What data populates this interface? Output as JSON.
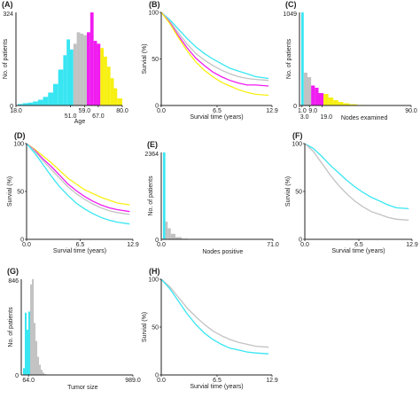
{
  "colors": {
    "cyan": "#38e6f2",
    "gray": "#c2c2c2",
    "magenta": "#f01cf0",
    "yellow": "#f7f012",
    "axis": "#222222"
  },
  "chart_data": [
    {
      "panel": "(A)",
      "type": "histogram",
      "xlabel": "Age",
      "ylabel": "No. of patients",
      "ymax_label": "324",
      "yzero_label": "0",
      "xlim": [
        18,
        80
      ],
      "ylim": [
        0,
        324
      ],
      "xticks": [
        "18.0",
        "51.0",
        "59.0",
        "67.0",
        "80.0"
      ],
      "bins": [
        {
          "x0": 18,
          "x1": 21,
          "count": 5,
          "group": "cyan"
        },
        {
          "x0": 21,
          "x1": 24,
          "count": 8,
          "group": "cyan"
        },
        {
          "x0": 24,
          "x1": 27,
          "count": 10,
          "group": "cyan"
        },
        {
          "x0": 27,
          "x1": 30,
          "count": 14,
          "group": "cyan"
        },
        {
          "x0": 30,
          "x1": 33,
          "count": 20,
          "group": "cyan"
        },
        {
          "x0": 33,
          "x1": 36,
          "count": 30,
          "group": "cyan"
        },
        {
          "x0": 36,
          "x1": 39,
          "count": 45,
          "group": "cyan"
        },
        {
          "x0": 39,
          "x1": 42,
          "count": 75,
          "group": "cyan"
        },
        {
          "x0": 42,
          "x1": 45,
          "count": 125,
          "group": "cyan"
        },
        {
          "x0": 45,
          "x1": 47,
          "count": 175,
          "group": "cyan"
        },
        {
          "x0": 47,
          "x1": 49,
          "count": 230,
          "group": "cyan"
        },
        {
          "x0": 49,
          "x1": 51,
          "count": 195,
          "group": "cyan"
        },
        {
          "x0": 51,
          "x1": 53,
          "count": 215,
          "group": "gray"
        },
        {
          "x0": 53,
          "x1": 55,
          "count": 255,
          "group": "gray"
        },
        {
          "x0": 55,
          "x1": 57,
          "count": 250,
          "group": "gray"
        },
        {
          "x0": 57,
          "x1": 59,
          "count": 245,
          "group": "gray"
        },
        {
          "x0": 59,
          "x1": 61,
          "count": 255,
          "group": "magenta"
        },
        {
          "x0": 61,
          "x1": 63,
          "count": 324,
          "group": "magenta"
        },
        {
          "x0": 63,
          "x1": 65,
          "count": 225,
          "group": "magenta"
        },
        {
          "x0": 65,
          "x1": 67,
          "count": 215,
          "group": "magenta"
        },
        {
          "x0": 67,
          "x1": 69,
          "count": 200,
          "group": "yellow"
        },
        {
          "x0": 69,
          "x1": 71,
          "count": 170,
          "group": "yellow"
        },
        {
          "x0": 71,
          "x1": 73,
          "count": 135,
          "group": "yellow"
        },
        {
          "x0": 73,
          "x1": 75,
          "count": 95,
          "group": "yellow"
        },
        {
          "x0": 75,
          "x1": 77,
          "count": 60,
          "group": "yellow"
        },
        {
          "x0": 77,
          "x1": 80,
          "count": 25,
          "group": "yellow"
        }
      ]
    },
    {
      "panel": "(B)",
      "type": "line",
      "xlabel": "Survial time (years)",
      "ylabel": "Survial (%)",
      "xlim": [
        0,
        12.9
      ],
      "ylim": [
        0,
        100
      ],
      "xticks": [
        "0.0",
        "6.5",
        "12.9"
      ],
      "yticks": [
        "0",
        "50",
        "100"
      ],
      "series": [
        {
          "color": "cyan",
          "x": [
            0,
            1,
            2,
            3,
            4,
            5,
            6,
            7,
            8,
            9,
            10,
            11,
            12.5
          ],
          "y": [
            100,
            92,
            82,
            72,
            63,
            56,
            50,
            45,
            40,
            37,
            34,
            31,
            29
          ]
        },
        {
          "color": "gray",
          "x": [
            0,
            1,
            2,
            3,
            4,
            5,
            6,
            7,
            8,
            9,
            10,
            11,
            12.5
          ],
          "y": [
            100,
            90,
            78,
            66,
            56,
            49,
            43,
            38,
            34,
            31,
            29,
            28,
            27
          ]
        },
        {
          "color": "magenta",
          "x": [
            0,
            1,
            2,
            3,
            4,
            5,
            6,
            7,
            8,
            9,
            10,
            11,
            12.5
          ],
          "y": [
            100,
            89,
            75,
            62,
            51,
            43,
            36,
            31,
            27,
            24,
            22,
            22,
            21
          ]
        },
        {
          "color": "yellow",
          "x": [
            0,
            1,
            2,
            3,
            4,
            5,
            6,
            7,
            8,
            9,
            10,
            11,
            12.5
          ],
          "y": [
            100,
            88,
            73,
            59,
            47,
            38,
            31,
            25,
            21,
            17,
            14,
            12,
            11
          ]
        }
      ]
    },
    {
      "panel": "(C)",
      "type": "histogram",
      "xlabel": "Nodes examined",
      "ylabel": "No. of patients",
      "ymax_label": "1049",
      "yzero_label": "0",
      "xlim": [
        1,
        90
      ],
      "ylim": [
        0,
        1049
      ],
      "xticks": [
        "1.0",
        "3.0",
        "9.0",
        "19.0",
        "90.0"
      ],
      "bins": [
        {
          "x0": 1,
          "x1": 3,
          "count": 1049,
          "group": "cyan"
        },
        {
          "x0": 3,
          "x1": 6,
          "count": 370,
          "group": "gray"
        },
        {
          "x0": 6,
          "x1": 9,
          "count": 320,
          "group": "gray"
        },
        {
          "x0": 9,
          "x1": 12,
          "count": 225,
          "group": "magenta"
        },
        {
          "x0": 12,
          "x1": 15,
          "count": 200,
          "group": "magenta"
        },
        {
          "x0": 15,
          "x1": 19,
          "count": 140,
          "group": "magenta"
        },
        {
          "x0": 19,
          "x1": 23,
          "count": 130,
          "group": "yellow"
        },
        {
          "x0": 23,
          "x1": 27,
          "count": 90,
          "group": "yellow"
        },
        {
          "x0": 27,
          "x1": 31,
          "count": 60,
          "group": "yellow"
        },
        {
          "x0": 31,
          "x1": 35,
          "count": 40,
          "group": "yellow"
        },
        {
          "x0": 35,
          "x1": 40,
          "count": 25,
          "group": "yellow"
        },
        {
          "x0": 40,
          "x1": 46,
          "count": 14,
          "group": "yellow"
        },
        {
          "x0": 46,
          "x1": 52,
          "count": 6,
          "group": "yellow"
        }
      ]
    },
    {
      "panel": "(D)",
      "type": "line",
      "xlabel": "Survial time (years)",
      "ylabel": "Survial (%)",
      "xlim": [
        0,
        12.9
      ],
      "ylim": [
        0,
        100
      ],
      "xticks": [
        "0.0",
        "6.5",
        "12.9"
      ],
      "yticks": [
        "0",
        "50",
        "100"
      ],
      "series": [
        {
          "color": "yellow",
          "x": [
            0,
            1,
            2,
            3,
            4,
            5,
            6,
            7,
            8,
            9,
            10,
            11,
            12.5
          ],
          "y": [
            100,
            94,
            87,
            80,
            72,
            64,
            58,
            52,
            48,
            44,
            41,
            38,
            36
          ]
        },
        {
          "color": "magenta",
          "x": [
            0,
            1,
            2,
            3,
            4,
            5,
            6,
            7,
            8,
            9,
            10,
            11,
            12.5
          ],
          "y": [
            100,
            93,
            84,
            76,
            67,
            58,
            51,
            45,
            40,
            36,
            33,
            31,
            29
          ]
        },
        {
          "color": "gray",
          "x": [
            0,
            1,
            2,
            3,
            4,
            5,
            6,
            7,
            8,
            9,
            10,
            11,
            12.5
          ],
          "y": [
            100,
            92,
            82,
            73,
            64,
            55,
            48,
            42,
            37,
            33,
            30,
            28,
            26
          ]
        },
        {
          "color": "cyan",
          "x": [
            0,
            1,
            2,
            3,
            4,
            5,
            6,
            7,
            8,
            9,
            10,
            11,
            12.5
          ],
          "y": [
            100,
            90,
            78,
            66,
            55,
            46,
            38,
            32,
            27,
            23,
            20,
            18,
            16
          ]
        }
      ]
    },
    {
      "panel": "(E)",
      "type": "histogram",
      "xlabel": "Nodes positive",
      "ylabel": "No. of patients",
      "ymax_label": "2364",
      "yzero_label": "0",
      "xlim": [
        0,
        71
      ],
      "ylim": [
        0,
        2364
      ],
      "xticks": [
        "0.0",
        "71.0"
      ],
      "bins": [
        {
          "x0": 0,
          "x1": 1.5,
          "count": 2364,
          "group": "cyan"
        },
        {
          "x0": 1.5,
          "x1": 3,
          "count": 480,
          "group": "gray"
        },
        {
          "x0": 3,
          "x1": 5,
          "count": 300,
          "group": "gray"
        },
        {
          "x0": 5,
          "x1": 8,
          "count": 150,
          "group": "gray"
        },
        {
          "x0": 8,
          "x1": 12,
          "count": 60,
          "group": "gray"
        },
        {
          "x0": 12,
          "x1": 16,
          "count": 20,
          "group": "gray"
        }
      ]
    },
    {
      "panel": "(F)",
      "type": "line",
      "xlabel": "Survial time (years)",
      "ylabel": "Survial (%)",
      "xlim": [
        0,
        12.9
      ],
      "ylim": [
        0,
        100
      ],
      "xticks": [
        "0.0",
        "6.5",
        "12.9"
      ],
      "yticks": [
        "0",
        "50",
        "100"
      ],
      "series": [
        {
          "color": "cyan",
          "x": [
            0,
            1,
            2,
            3,
            4,
            5,
            6,
            7,
            8,
            9,
            10,
            11,
            12.5
          ],
          "y": [
            100,
            95,
            87,
            78,
            70,
            62,
            55,
            49,
            44,
            40,
            36,
            33,
            32
          ]
        },
        {
          "color": "gray",
          "x": [
            0,
            1,
            2,
            3,
            4,
            5,
            6,
            7,
            8,
            9,
            10,
            11,
            12.5
          ],
          "y": [
            100,
            92,
            80,
            68,
            57,
            48,
            40,
            34,
            29,
            26,
            23,
            21,
            20
          ]
        }
      ]
    },
    {
      "panel": "(G)",
      "type": "histogram",
      "xlabel": "Tumor size",
      "ylabel": "No. of patients",
      "ymax_label": "846",
      "yzero_label": "0",
      "xlim": [
        0,
        989
      ],
      "ylim": [
        0,
        846
      ],
      "xticks": [
        "64.0",
        "989.0"
      ],
      "bins": [
        {
          "x0": 0,
          "x1": 16,
          "count": 60,
          "group": "cyan"
        },
        {
          "x0": 16,
          "x1": 32,
          "count": 550,
          "group": "cyan"
        },
        {
          "x0": 32,
          "x1": 48,
          "count": 400,
          "group": "cyan"
        },
        {
          "x0": 48,
          "x1": 64,
          "count": 560,
          "group": "cyan"
        },
        {
          "x0": 64,
          "x1": 80,
          "count": 800,
          "group": "gray"
        },
        {
          "x0": 80,
          "x1": 96,
          "count": 846,
          "group": "gray"
        },
        {
          "x0": 96,
          "x1": 112,
          "count": 460,
          "group": "gray"
        },
        {
          "x0": 112,
          "x1": 128,
          "count": 300,
          "group": "gray"
        },
        {
          "x0": 128,
          "x1": 144,
          "count": 160,
          "group": "gray"
        },
        {
          "x0": 144,
          "x1": 160,
          "count": 90,
          "group": "gray"
        },
        {
          "x0": 160,
          "x1": 176,
          "count": 45,
          "group": "gray"
        },
        {
          "x0": 176,
          "x1": 192,
          "count": 20,
          "group": "gray"
        },
        {
          "x0": 192,
          "x1": 208,
          "count": 8,
          "group": "gray"
        }
      ]
    },
    {
      "panel": "(H)",
      "type": "line",
      "xlabel": "Survial time (years)",
      "ylabel": "Survial (%)",
      "xlim": [
        0,
        12.9
      ],
      "ylim": [
        0,
        100
      ],
      "xticks": [
        "0.0",
        "6.5",
        "12.9"
      ],
      "yticks": [
        "0",
        "50",
        "100"
      ],
      "series": [
        {
          "color": "gray",
          "x": [
            0,
            1,
            2,
            3,
            4,
            5,
            6,
            7,
            8,
            9,
            10,
            11,
            12.5
          ],
          "y": [
            100,
            92,
            81,
            70,
            61,
            53,
            46,
            41,
            37,
            34,
            32,
            30,
            29
          ]
        },
        {
          "color": "cyan",
          "x": [
            0,
            1,
            2,
            3,
            4,
            5,
            6,
            7,
            8,
            9,
            10,
            11,
            12.5
          ],
          "y": [
            100,
            90,
            77,
            64,
            53,
            44,
            37,
            32,
            28,
            26,
            24,
            23,
            22
          ]
        }
      ]
    }
  ]
}
